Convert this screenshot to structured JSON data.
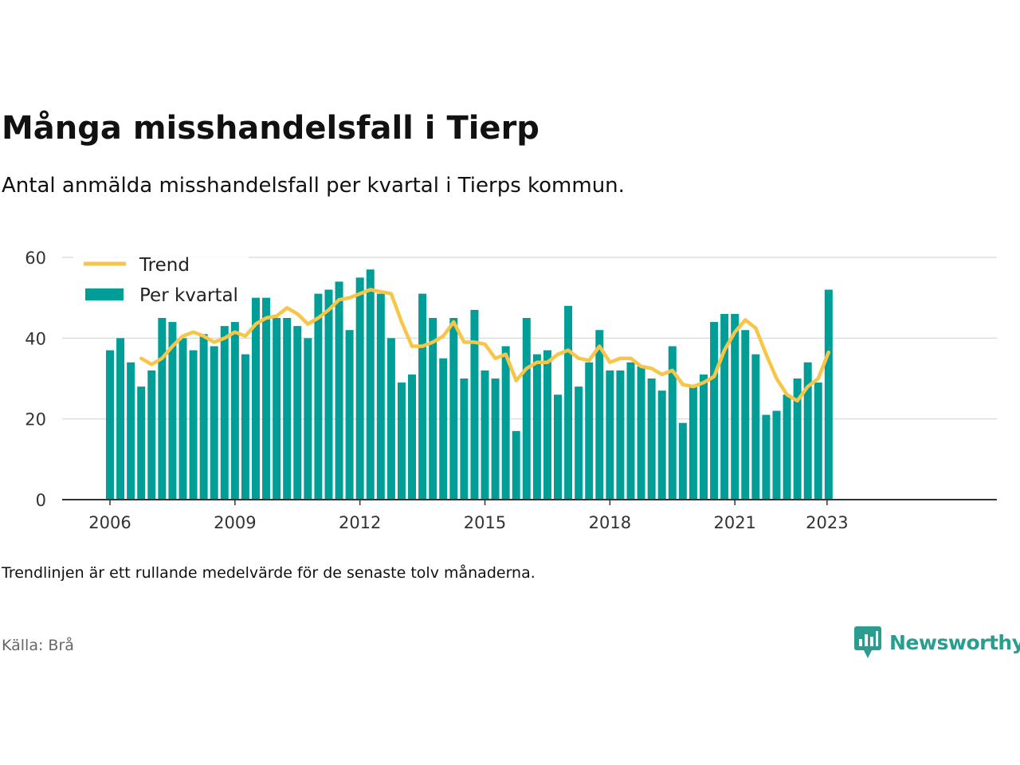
{
  "header": {
    "title": "Många misshandelsfall i Tierp",
    "subtitle": "Antal anmälda misshandelsfall per kvartal i Tierps kommun."
  },
  "footer": {
    "note": "Trendlinjen är ett rullande medelvärde för de senaste tolv månaderna.",
    "source": "Källa: Brå",
    "brand": "Newsworthy"
  },
  "colors": {
    "bars": "#009e96",
    "trend": "#f7c548",
    "grid": "#dddddd",
    "axis": "#333333",
    "brand": "#2a9d8f"
  },
  "chart_data": {
    "type": "bar",
    "title": "Många misshandelsfall i Tierp",
    "xlabel": "",
    "ylabel": "",
    "ylim": [
      0,
      60
    ],
    "yticks": [
      0,
      20,
      40,
      60
    ],
    "xticks": [
      "2006",
      "2009",
      "2012",
      "2015",
      "2018",
      "2021",
      "2023"
    ],
    "legend": {
      "placement": "top-left",
      "entries": [
        "Trend",
        "Per kvartal"
      ]
    },
    "grid": true,
    "categories": [
      "2006 Q1",
      "2006 Q2",
      "2006 Q3",
      "2006 Q4",
      "2007 Q1",
      "2007 Q2",
      "2007 Q3",
      "2007 Q4",
      "2008 Q1",
      "2008 Q2",
      "2008 Q3",
      "2008 Q4",
      "2009 Q1",
      "2009 Q2",
      "2009 Q3",
      "2009 Q4",
      "2010 Q1",
      "2010 Q2",
      "2010 Q3",
      "2010 Q4",
      "2011 Q1",
      "2011 Q2",
      "2011 Q3",
      "2011 Q4",
      "2012 Q1",
      "2012 Q2",
      "2012 Q3",
      "2012 Q4",
      "2013 Q1",
      "2013 Q2",
      "2013 Q3",
      "2013 Q4",
      "2014 Q1",
      "2014 Q2",
      "2014 Q3",
      "2014 Q4",
      "2015 Q1",
      "2015 Q2",
      "2015 Q3",
      "2015 Q4",
      "2016 Q1",
      "2016 Q2",
      "2016 Q3",
      "2016 Q4",
      "2017 Q1",
      "2017 Q2",
      "2017 Q3",
      "2017 Q4",
      "2018 Q1",
      "2018 Q2",
      "2018 Q3",
      "2018 Q4",
      "2019 Q1",
      "2019 Q2",
      "2019 Q3",
      "2019 Q4",
      "2020 Q1",
      "2020 Q2",
      "2020 Q3",
      "2020 Q4",
      "2021 Q1",
      "2021 Q2",
      "2021 Q3",
      "2021 Q4",
      "2022 Q1",
      "2022 Q2",
      "2022 Q3",
      "2022 Q4",
      "2023 Q1",
      "2023 Q2"
    ],
    "series": [
      {
        "name": "Per kvartal",
        "type": "bar",
        "values": [
          37,
          40,
          34,
          28,
          32,
          45,
          44,
          40,
          37,
          41,
          38,
          43,
          44,
          36,
          50,
          50,
          45,
          45,
          43,
          40,
          51,
          52,
          54,
          42,
          55,
          57,
          51,
          40,
          29,
          31,
          51,
          45,
          35,
          45,
          30,
          47,
          32,
          30,
          38,
          17,
          45,
          36,
          37,
          26,
          48,
          28,
          34,
          42,
          32,
          32,
          34,
          33,
          30,
          27,
          38,
          19,
          28,
          31,
          44,
          46,
          46,
          42,
          36,
          21,
          22,
          26,
          30,
          34,
          29,
          52
        ]
      },
      {
        "name": "Trend",
        "type": "line",
        "values": [
          null,
          null,
          null,
          35,
          33.5,
          35,
          38,
          40.5,
          41.5,
          40.5,
          39,
          40,
          41.5,
          40.5,
          43.5,
          45,
          45.5,
          47.5,
          46,
          43.5,
          45,
          47,
          49.5,
          50,
          51,
          52,
          51.5,
          51,
          44,
          38,
          38,
          39,
          40.5,
          44,
          39,
          39,
          38.5,
          35,
          36,
          29.5,
          32.5,
          34,
          34,
          36,
          37,
          35,
          34.5,
          38,
          34,
          35,
          35,
          33,
          32.5,
          31,
          32,
          28.5,
          28,
          29,
          30.5,
          37,
          41.5,
          44.5,
          42.5,
          36,
          30,
          26,
          24.5,
          28,
          30,
          36.5
        ]
      }
    ]
  }
}
